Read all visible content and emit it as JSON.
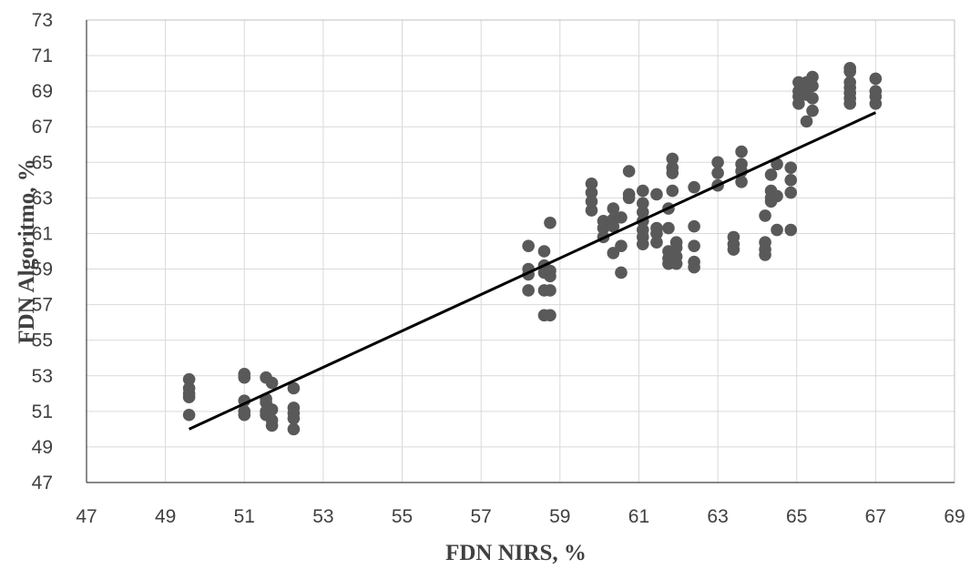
{
  "chart_data": {
    "type": "scatter",
    "title": "",
    "xlabel": "FDN NIRS, %",
    "ylabel": "FDN Algoritmo,  %",
    "xlim": [
      47,
      69
    ],
    "ylim": [
      47,
      73
    ],
    "x_ticks": [
      "47",
      "49",
      "51",
      "53",
      "55",
      "57",
      "59",
      "61",
      "63",
      "65",
      "67",
      "69"
    ],
    "y_ticks": [
      "47",
      "49",
      "51",
      "53",
      "55",
      "57",
      "59",
      "61",
      "63",
      "65",
      "67",
      "69",
      "71",
      "73"
    ],
    "grid": true,
    "legend": "none",
    "colors": {
      "marker": "#595959",
      "trendline": "#000000",
      "grid": "#d9d9d9",
      "text": "#404040"
    },
    "trendline": {
      "x": [
        49.6,
        67.0
      ],
      "y": [
        50.0,
        67.8
      ]
    },
    "series": [
      {
        "points": [
          [
            49.6,
            52.8
          ],
          [
            49.6,
            52.3
          ],
          [
            49.6,
            52.0
          ],
          [
            49.6,
            51.8
          ],
          [
            49.6,
            50.8
          ],
          [
            51.0,
            53.1
          ],
          [
            51.0,
            52.9
          ],
          [
            51.0,
            51.6
          ],
          [
            51.0,
            51.0
          ],
          [
            51.0,
            50.8
          ],
          [
            51.55,
            52.9
          ],
          [
            51.55,
            51.7
          ],
          [
            51.55,
            51.5
          ],
          [
            51.55,
            51.0
          ],
          [
            51.55,
            50.8
          ],
          [
            51.7,
            52.6
          ],
          [
            51.7,
            51.1
          ],
          [
            51.7,
            50.5
          ],
          [
            51.7,
            50.2
          ],
          [
            52.25,
            52.3
          ],
          [
            52.25,
            51.2
          ],
          [
            52.25,
            50.9
          ],
          [
            52.25,
            50.6
          ],
          [
            52.25,
            50.0
          ],
          [
            58.2,
            60.3
          ],
          [
            58.2,
            59.0
          ],
          [
            58.2,
            58.7
          ],
          [
            58.2,
            57.8
          ],
          [
            58.6,
            60.0
          ],
          [
            58.6,
            59.2
          ],
          [
            58.6,
            58.8
          ],
          [
            58.6,
            57.8
          ],
          [
            58.6,
            56.4
          ],
          [
            58.75,
            61.6
          ],
          [
            58.75,
            58.9
          ],
          [
            58.75,
            58.6
          ],
          [
            58.75,
            57.8
          ],
          [
            58.75,
            56.4
          ],
          [
            59.8,
            63.8
          ],
          [
            59.8,
            63.3
          ],
          [
            59.8,
            62.8
          ],
          [
            59.8,
            62.3
          ],
          [
            60.1,
            61.7
          ],
          [
            60.1,
            61.3
          ],
          [
            60.1,
            60.8
          ],
          [
            60.35,
            62.4
          ],
          [
            60.35,
            61.8
          ],
          [
            60.35,
            61.4
          ],
          [
            60.35,
            59.9
          ],
          [
            60.55,
            61.9
          ],
          [
            60.55,
            60.3
          ],
          [
            60.55,
            58.8
          ],
          [
            60.75,
            64.5
          ],
          [
            60.75,
            63.2
          ],
          [
            60.75,
            63.0
          ],
          [
            61.1,
            63.4
          ],
          [
            61.1,
            62.7
          ],
          [
            61.1,
            62.2
          ],
          [
            61.1,
            61.7
          ],
          [
            61.1,
            61.2
          ],
          [
            61.1,
            60.8
          ],
          [
            61.1,
            60.4
          ],
          [
            61.45,
            63.2
          ],
          [
            61.45,
            61.3
          ],
          [
            61.45,
            61.0
          ],
          [
            61.45,
            60.5
          ],
          [
            61.75,
            62.4
          ],
          [
            61.75,
            61.3
          ],
          [
            61.75,
            60.0
          ],
          [
            61.75,
            59.6
          ],
          [
            61.75,
            59.3
          ],
          [
            61.85,
            65.2
          ],
          [
            61.85,
            64.7
          ],
          [
            61.85,
            64.4
          ],
          [
            61.85,
            63.4
          ],
          [
            61.95,
            60.5
          ],
          [
            61.95,
            60.2
          ],
          [
            61.95,
            59.7
          ],
          [
            61.95,
            59.3
          ],
          [
            62.4,
            63.6
          ],
          [
            62.4,
            61.4
          ],
          [
            62.4,
            60.3
          ],
          [
            62.4,
            59.4
          ],
          [
            62.4,
            59.1
          ],
          [
            63.0,
            65.0
          ],
          [
            63.0,
            64.4
          ],
          [
            63.0,
            63.7
          ],
          [
            63.4,
            60.8
          ],
          [
            63.4,
            60.4
          ],
          [
            63.4,
            60.1
          ],
          [
            63.6,
            65.6
          ],
          [
            63.6,
            64.9
          ],
          [
            63.6,
            64.5
          ],
          [
            63.6,
            63.9
          ],
          [
            64.2,
            62.0
          ],
          [
            64.2,
            60.5
          ],
          [
            64.2,
            60.1
          ],
          [
            64.2,
            59.8
          ],
          [
            64.35,
            64.3
          ],
          [
            64.35,
            63.4
          ],
          [
            64.35,
            63.0
          ],
          [
            64.35,
            62.8
          ],
          [
            64.5,
            64.9
          ],
          [
            64.5,
            63.1
          ],
          [
            64.5,
            61.2
          ],
          [
            64.85,
            64.7
          ],
          [
            64.85,
            64.0
          ],
          [
            64.85,
            63.3
          ],
          [
            64.85,
            61.2
          ],
          [
            65.05,
            69.5
          ],
          [
            65.05,
            69.0
          ],
          [
            65.05,
            68.7
          ],
          [
            65.05,
            68.3
          ],
          [
            65.25,
            69.5
          ],
          [
            65.25,
            69.1
          ],
          [
            65.25,
            68.8
          ],
          [
            65.25,
            67.3
          ],
          [
            65.4,
            69.8
          ],
          [
            65.4,
            69.3
          ],
          [
            65.4,
            68.6
          ],
          [
            65.4,
            67.9
          ],
          [
            66.35,
            70.3
          ],
          [
            66.35,
            70.1
          ],
          [
            66.35,
            69.5
          ],
          [
            66.35,
            69.2
          ],
          [
            66.35,
            68.9
          ],
          [
            66.35,
            68.6
          ],
          [
            66.35,
            68.3
          ],
          [
            67.0,
            69.7
          ],
          [
            67.0,
            69.0
          ],
          [
            67.0,
            68.7
          ],
          [
            67.0,
            68.3
          ]
        ]
      }
    ]
  }
}
